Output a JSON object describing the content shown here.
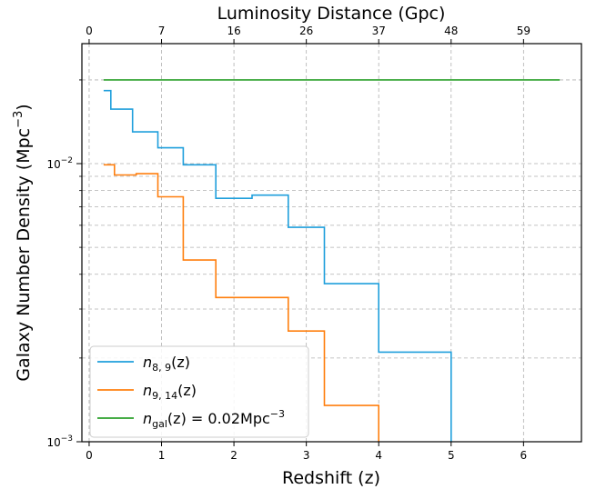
{
  "chart_data": {
    "type": "line",
    "xlabel": "Redshift (z)",
    "ylabel": "Galaxy Number Density (Mpc^-3)",
    "top_xlabel": "Luminosity Distance (Gpc)",
    "xlim": [
      -0.1,
      6.8
    ],
    "ylim": [
      0.001,
      0.027
    ],
    "yscale": "log",
    "x_ticks": [
      0,
      1,
      2,
      3,
      4,
      5,
      6
    ],
    "top_x_ticks": [
      {
        "z": 0.0,
        "label": "0"
      },
      {
        "z": 1.0,
        "label": "7"
      },
      {
        "z": 2.0,
        "label": "16"
      },
      {
        "z": 3.0,
        "label": "26"
      },
      {
        "z": 4.0,
        "label": "37"
      },
      {
        "z": 5.0,
        "label": "48"
      },
      {
        "z": 6.0,
        "label": "59"
      }
    ],
    "y_major_ticks": [
      {
        "value": 0.001,
        "base": "10",
        "exp": "−3"
      },
      {
        "value": 0.01,
        "base": "10",
        "exp": "−2"
      }
    ],
    "grid": true,
    "legend_position": "lower-left",
    "series": [
      {
        "name": "n8,9(z)",
        "legend_main": "n",
        "legend_sub": "8, 9",
        "legend_tail": "(z)",
        "color": "#1f9fdc",
        "steps": [
          [
            0.2,
            0.3,
            0.0183
          ],
          [
            0.3,
            0.6,
            0.0157
          ],
          [
            0.6,
            0.95,
            0.013
          ],
          [
            0.95,
            1.3,
            0.0114
          ],
          [
            1.3,
            1.75,
            0.0099
          ],
          [
            1.75,
            2.25,
            0.0075
          ],
          [
            2.25,
            2.75,
            0.0077
          ],
          [
            2.75,
            3.25,
            0.0059
          ],
          [
            3.25,
            4.0,
            0.0037
          ],
          [
            4.0,
            5.0,
            0.0021
          ]
        ],
        "end_drop": 0.001
      },
      {
        "name": "n9,14(z)",
        "legend_main": "n",
        "legend_sub": "9, 14",
        "legend_tail": "(z)",
        "color": "#ff7f0e",
        "steps": [
          [
            0.2,
            0.35,
            0.0099
          ],
          [
            0.35,
            0.65,
            0.0091
          ],
          [
            0.65,
            0.95,
            0.0092
          ],
          [
            0.95,
            1.3,
            0.0076
          ],
          [
            1.3,
            1.75,
            0.0045
          ],
          [
            1.75,
            2.25,
            0.0033
          ],
          [
            2.25,
            2.75,
            0.0033
          ],
          [
            2.75,
            3.25,
            0.0025
          ],
          [
            3.25,
            4.0,
            0.00135
          ]
        ],
        "end_drop": 0.001
      },
      {
        "name": "ngal(z) = 0.02Mpc^-3",
        "legend_main": "n",
        "legend_sub": "gal",
        "legend_tail": "(z) = 0.02Mpc",
        "legend_sup": "−3",
        "color": "#2ca02c",
        "x": [
          0.2,
          6.5
        ],
        "y": [
          0.02,
          0.02
        ]
      }
    ]
  }
}
